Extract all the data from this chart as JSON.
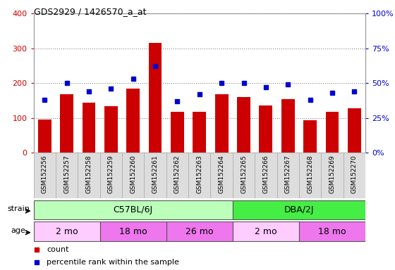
{
  "title": "GDS2929 / 1426570_a_at",
  "samples": [
    "GSM152256",
    "GSM152257",
    "GSM152258",
    "GSM152259",
    "GSM152260",
    "GSM152261",
    "GSM152262",
    "GSM152263",
    "GSM152264",
    "GSM152265",
    "GSM152266",
    "GSM152267",
    "GSM152268",
    "GSM152269",
    "GSM152270"
  ],
  "counts": [
    95,
    168,
    143,
    133,
    183,
    315,
    118,
    118,
    168,
    160,
    135,
    153,
    93,
    118,
    127
  ],
  "percentiles": [
    38,
    50,
    44,
    46,
    53,
    62,
    37,
    42,
    50,
    50,
    47,
    49,
    38,
    43,
    44
  ],
  "ylim_left": [
    0,
    400
  ],
  "ylim_right": [
    0,
    100
  ],
  "yticks_left": [
    0,
    100,
    200,
    300,
    400
  ],
  "yticks_right": [
    0,
    25,
    50,
    75,
    100
  ],
  "bar_color": "#cc0000",
  "dot_color": "#0000cc",
  "strain_groups": [
    {
      "label": "C57BL/6J",
      "start": 0,
      "end": 9,
      "color": "#bbffbb"
    },
    {
      "label": "DBA/2J",
      "start": 9,
      "end": 15,
      "color": "#44ee44"
    }
  ],
  "age_groups": [
    {
      "label": "2 mo",
      "start": 0,
      "end": 3,
      "color": "#ffccff"
    },
    {
      "label": "18 mo",
      "start": 3,
      "end": 6,
      "color": "#ee77ee"
    },
    {
      "label": "26 mo",
      "start": 6,
      "end": 9,
      "color": "#ee77ee"
    },
    {
      "label": "2 mo",
      "start": 9,
      "end": 12,
      "color": "#ffccff"
    },
    {
      "label": "18 mo",
      "start": 12,
      "end": 15,
      "color": "#ee77ee"
    }
  ],
  "grid_color": "#888888",
  "bg_color": "#ffffff",
  "label_color_left": "#cc0000",
  "label_color_right": "#0000cc",
  "xtick_bg": "#dddddd"
}
